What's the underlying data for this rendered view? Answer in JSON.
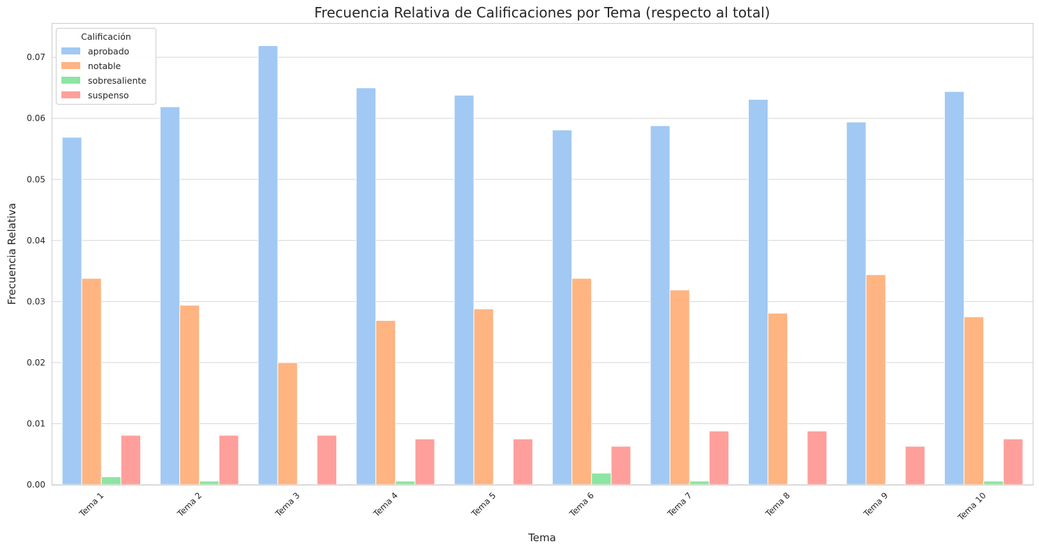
{
  "chart_data": {
    "type": "bar",
    "title": "Frecuencia Relativa de Calificaciones por Tema (respecto al total)",
    "xlabel": "Tema",
    "ylabel": "Frecuencia Relativa",
    "categories": [
      "Tema 1",
      "Tema 2",
      "Tema 3",
      "Tema 4",
      "Tema 5",
      "Tema 6",
      "Tema 7",
      "Tema 8",
      "Tema 9",
      "Tema 10"
    ],
    "ylim": [
      0,
      0.0755
    ],
    "yticks": [
      0.0,
      0.01,
      0.02,
      0.03,
      0.04,
      0.05,
      0.06,
      0.07
    ],
    "ytick_labels": [
      "0.00",
      "0.01",
      "0.02",
      "0.03",
      "0.04",
      "0.05",
      "0.06",
      "0.07"
    ],
    "grid": true,
    "legend": {
      "title": "Calificación",
      "placement": "top-left"
    },
    "series": [
      {
        "name": "aprobado",
        "color": "#a1c9f4",
        "values": [
          0.0569,
          0.0619,
          0.0719,
          0.065,
          0.0638,
          0.0581,
          0.0588,
          0.0631,
          0.0594,
          0.0644
        ]
      },
      {
        "name": "notable",
        "color": "#ffb482",
        "values": [
          0.0338,
          0.0294,
          0.02,
          0.0269,
          0.0288,
          0.0338,
          0.0319,
          0.0281,
          0.0344,
          0.0275
        ]
      },
      {
        "name": "sobresaliente",
        "color": "#8de5a1",
        "values": [
          0.0013,
          0.0006,
          0.0,
          0.0006,
          0.0,
          0.0019,
          0.0006,
          0.0,
          0.0,
          0.0006
        ]
      },
      {
        "name": "suspenso",
        "color": "#ff9f9b",
        "values": [
          0.0081,
          0.0081,
          0.0081,
          0.0075,
          0.0075,
          0.0063,
          0.0088,
          0.0088,
          0.0063,
          0.0075
        ]
      }
    ]
  }
}
